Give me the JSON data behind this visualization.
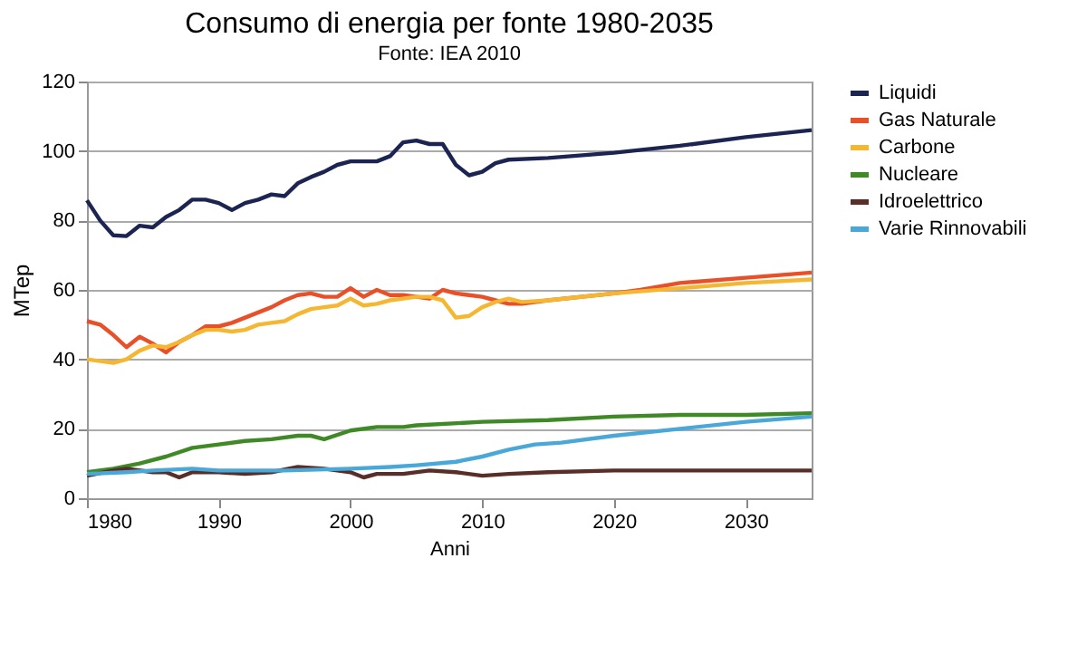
{
  "chart_data": {
    "type": "line",
    "title": "Consumo di energia per fonte 1980-2035",
    "subtitle": "Fonte: IEA 2010",
    "xlabel": "Anni",
    "ylabel": "MTep",
    "xlim": [
      1980,
      2035
    ],
    "xticks": [
      1980,
      1990,
      2000,
      2010,
      2020,
      2030
    ],
    "ylim": [
      0,
      120
    ],
    "yticks": [
      0,
      20,
      40,
      60,
      80,
      100,
      120
    ],
    "grid": "y",
    "legend": "right",
    "marker": "none",
    "line_style": "solid",
    "series": [
      {
        "name": "Liquidi",
        "color": "#1c2452",
        "x": [
          1980,
          1981,
          1982,
          1983,
          1984,
          1985,
          1986,
          1987,
          1988,
          1989,
          1990,
          1991,
          1992,
          1993,
          1994,
          1995,
          1996,
          1997,
          1998,
          1999,
          2000,
          2001,
          2002,
          2003,
          2004,
          2005,
          2006,
          2007,
          2008,
          2009,
          2010,
          2011,
          2012,
          2015,
          2020,
          2025,
          2030,
          2035
        ],
        "values": [
          85.8,
          80,
          75.7,
          75.5,
          78.5,
          78,
          81,
          83,
          86,
          86,
          85,
          83,
          85,
          86,
          87.5,
          87,
          90.7,
          92.5,
          94,
          96,
          97,
          97,
          97,
          98.5,
          102.5,
          103,
          102,
          102,
          96,
          93,
          94,
          96.5,
          97.5,
          98,
          99.5,
          101.5,
          104,
          106
        ]
      },
      {
        "name": "Gas Naturale",
        "color": "#e8502a",
        "x": [
          1980,
          1981,
          1982,
          1983,
          1984,
          1985,
          1986,
          1987,
          1988,
          1989,
          1990,
          1991,
          1992,
          1993,
          1994,
          1995,
          1996,
          1997,
          1998,
          1999,
          2000,
          2001,
          2002,
          2003,
          2004,
          2005,
          2006,
          2007,
          2008,
          2009,
          2010,
          2011,
          2012,
          2013,
          2015,
          2020,
          2022,
          2025,
          2030,
          2035
        ],
        "values": [
          51,
          50,
          47,
          43.5,
          46.5,
          44.5,
          42,
          45,
          47,
          49.5,
          49.5,
          50.5,
          52,
          53.5,
          55,
          57,
          58.5,
          59,
          58,
          58,
          60.5,
          58,
          60,
          58.5,
          58.5,
          58,
          57.5,
          60,
          59,
          58.5,
          58,
          57,
          56,
          56,
          57,
          59,
          60,
          62,
          63.5,
          65
        ]
      },
      {
        "name": "Carbone",
        "color": "#f5b731",
        "x": [
          1980,
          1981,
          1982,
          1983,
          1984,
          1985,
          1986,
          1987,
          1988,
          1989,
          1990,
          1991,
          1992,
          1993,
          1994,
          1995,
          1996,
          1997,
          1998,
          1999,
          2000,
          2001,
          2002,
          2003,
          2004,
          2005,
          2006,
          2007,
          2008,
          2009,
          2010,
          2011,
          2012,
          2013,
          2015,
          2020,
          2025,
          2030,
          2035
        ],
        "values": [
          40,
          39.5,
          39,
          40,
          42.5,
          44,
          43.5,
          45,
          47,
          48.5,
          48.5,
          48,
          48.5,
          50,
          50.5,
          51,
          53,
          54.5,
          55,
          55.5,
          57.5,
          55.5,
          56,
          57,
          57.5,
          58,
          58,
          57,
          52,
          52.5,
          55,
          56.5,
          57.5,
          56.5,
          57,
          59,
          60.5,
          62,
          63
        ]
      },
      {
        "name": "Nucleare",
        "color": "#3f8a26",
        "x": [
          1980,
          1982,
          1984,
          1986,
          1988,
          1990,
          1992,
          1994,
          1996,
          1997,
          1998,
          2000,
          2002,
          2004,
          2005,
          2010,
          2015,
          2020,
          2025,
          2030,
          2035
        ],
        "values": [
          7.5,
          8.5,
          10,
          12,
          14.5,
          15.5,
          16.5,
          17,
          18,
          18,
          17,
          19.5,
          20.5,
          20.5,
          21,
          22,
          22.5,
          23.5,
          24,
          24,
          24.5
        ]
      },
      {
        "name": "Idroelettrico",
        "color": "#5a2e28",
        "x": [
          1980,
          1982,
          1983,
          1985,
          1986,
          1987,
          1988,
          1990,
          1992,
          1994,
          1996,
          1998,
          2000,
          2001,
          2002,
          2004,
          2006,
          2008,
          2010,
          2012,
          2015,
          2020,
          2035
        ],
        "values": [
          6.5,
          8,
          8.5,
          7.5,
          7.5,
          6,
          7.5,
          7.5,
          7,
          7.5,
          9,
          8.5,
          7.5,
          6,
          7,
          7,
          8,
          7.5,
          6.5,
          7,
          7.5,
          8,
          8
        ]
      },
      {
        "name": "Varie Rinnovabili",
        "color": "#4aa8d8",
        "x": [
          1980,
          1983,
          1985,
          1988,
          1990,
          1995,
          2000,
          2003,
          2005,
          2008,
          2010,
          2012,
          2014,
          2016,
          2020,
          2025,
          2030,
          2035
        ],
        "values": [
          7,
          7.5,
          8,
          8.5,
          8,
          8,
          8.5,
          9,
          9.5,
          10.5,
          12,
          14,
          15.5,
          16,
          18,
          20,
          22,
          23.5
        ]
      }
    ]
  }
}
